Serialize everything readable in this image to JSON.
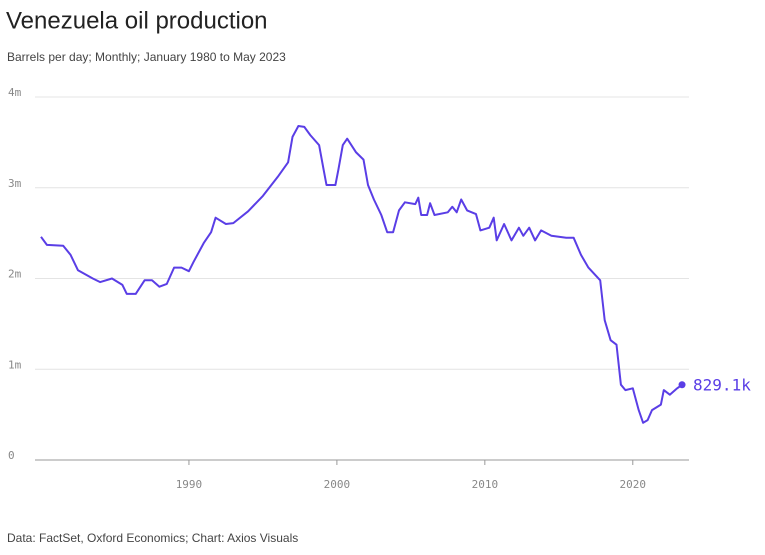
{
  "chart_data": {
    "type": "line",
    "title": "Venezuela oil production",
    "subtitle": "Barrels per day; Monthly; January 1980 to May 2023",
    "source": "Data: FactSet, Oxford Economics; Chart: Axios Visuals",
    "x": [
      1980.0,
      1980.4,
      1981.5,
      1982,
      1982.5,
      1983.5,
      1984,
      1984.8,
      1985.5,
      1985.8,
      1986.4,
      1987,
      1987.5,
      1988,
      1988.5,
      1989,
      1989.5,
      1990,
      1990.3,
      1991,
      1991.5,
      1991.8,
      1992.5,
      1993,
      1994,
      1995,
      1996,
      1996.7,
      1997,
      1997.4,
      1997.8,
      1998.2,
      1998.8,
      1999.1,
      1999.3,
      1999.9,
      2000.1,
      2000.4,
      2000.7,
      2001.3,
      2001.8,
      2002.1,
      2002.5,
      2003,
      2003.4,
      2003.8,
      2004.2,
      2004.6,
      2005.3,
      2005.5,
      2005.7,
      2006.1,
      2006.3,
      2006.6,
      2007.5,
      2007.8,
      2008.1,
      2008.4,
      2008.8,
      2009.4,
      2009.7,
      2010.3,
      2010.6,
      2010.8,
      2011.3,
      2011.8,
      2012.3,
      2012.6,
      2013,
      2013.4,
      2013.8,
      2014.5,
      2015.5,
      2016,
      2016.5,
      2017,
      2017.8,
      2018.1,
      2018.5,
      2018.9,
      2019.2,
      2019.5,
      2020,
      2020.4,
      2020.7,
      2021,
      2021.3,
      2021.9,
      2022.1,
      2022.5,
      2023.0,
      2023.33
    ],
    "series": [
      {
        "name": "Oil production",
        "color": "#5a3ee6",
        "values": [
          2.46,
          2.37,
          2.36,
          2.26,
          2.09,
          2.0,
          1.96,
          2.0,
          1.93,
          1.83,
          1.83,
          1.98,
          1.98,
          1.91,
          1.94,
          2.12,
          2.12,
          2.08,
          2.18,
          2.39,
          2.51,
          2.67,
          2.6,
          2.61,
          2.74,
          2.91,
          3.12,
          3.28,
          3.56,
          3.68,
          3.67,
          3.58,
          3.47,
          3.2,
          3.03,
          3.03,
          3.2,
          3.47,
          3.54,
          3.39,
          3.31,
          3.03,
          2.87,
          2.7,
          2.51,
          2.51,
          2.75,
          2.84,
          2.82,
          2.89,
          2.7,
          2.7,
          2.83,
          2.7,
          2.73,
          2.79,
          2.73,
          2.87,
          2.75,
          2.71,
          2.53,
          2.56,
          2.67,
          2.42,
          2.6,
          2.42,
          2.56,
          2.47,
          2.56,
          2.42,
          2.53,
          2.47,
          2.45,
          2.45,
          2.26,
          2.12,
          1.98,
          1.54,
          1.32,
          1.27,
          0.83,
          0.77,
          0.79,
          0.55,
          0.41,
          0.44,
          0.55,
          0.61,
          0.77,
          0.72,
          0.79,
          0.8291
        ],
        "end_label": "829.1k"
      }
    ],
    "xlim": [
      1979.5,
      2023.8
    ],
    "xticks": [
      1990,
      2000,
      2010,
      2020
    ],
    "ylim": [
      0,
      4
    ],
    "yticks": [
      0,
      {
        "value": 1,
        "label": "1m"
      },
      {
        "value": 2,
        "label": "2m"
      },
      {
        "value": 3,
        "label": "3m"
      },
      {
        "value": 4,
        "label": "4m"
      }
    ],
    "grid": true
  }
}
